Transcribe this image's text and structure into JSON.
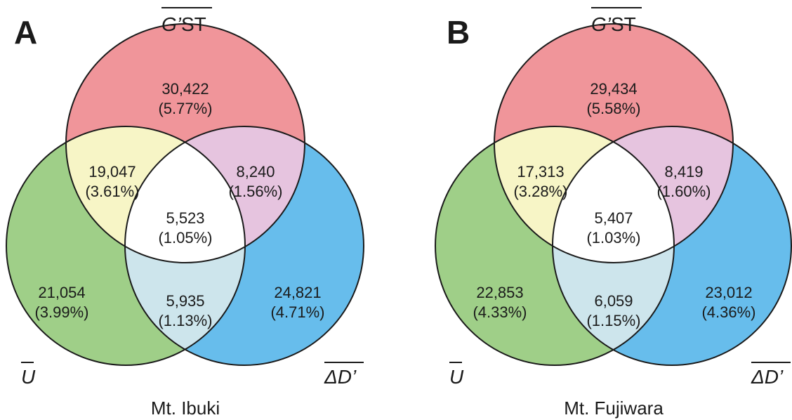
{
  "colors": {
    "gst_only": "#f0959a",
    "u_only": "#9fcf88",
    "dd_only": "#67bdec",
    "gst_u": "#f7f5c6",
    "gst_dd": "#e6c4df",
    "u_dd": "#cde5ec",
    "all": "#ffffff",
    "stroke": "#1a1a1a"
  },
  "panels": [
    {
      "letter": "A",
      "site": "Mt. Ibuki",
      "labels": {
        "gst_main": "G’",
        "gst_sub": "ST",
        "u": "U",
        "dd": "ΔD’"
      },
      "regions": {
        "gst_only": {
          "count": "30,422",
          "pct": "(5.77%)"
        },
        "gst_u": {
          "count": "19,047",
          "pct": "(3.61%)"
        },
        "gst_dd": {
          "count": "8,240",
          "pct": "(1.56%)"
        },
        "all": {
          "count": "5,523",
          "pct": "(1.05%)"
        },
        "u_only": {
          "count": "21,054",
          "pct": "(3.99%)"
        },
        "u_dd": {
          "count": "5,935",
          "pct": "(1.13%)"
        },
        "dd_only": {
          "count": "24,821",
          "pct": "(4.71%)"
        }
      }
    },
    {
      "letter": "B",
      "site": "Mt. Fujiwara",
      "labels": {
        "gst_main": "G’",
        "gst_sub": "ST",
        "u": "U",
        "dd": "ΔD’"
      },
      "regions": {
        "gst_only": {
          "count": "29,434",
          "pct": "(5.58%)"
        },
        "gst_u": {
          "count": "17,313",
          "pct": "(3.28%)"
        },
        "gst_dd": {
          "count": "8,419",
          "pct": "(1.60%)"
        },
        "all": {
          "count": "5,407",
          "pct": "(1.03%)"
        },
        "u_only": {
          "count": "22,853",
          "pct": "(4.33%)"
        },
        "u_dd": {
          "count": "6,059",
          "pct": "(1.15%)"
        },
        "dd_only": {
          "count": "23,012",
          "pct": "(4.36%)"
        }
      }
    }
  ]
}
